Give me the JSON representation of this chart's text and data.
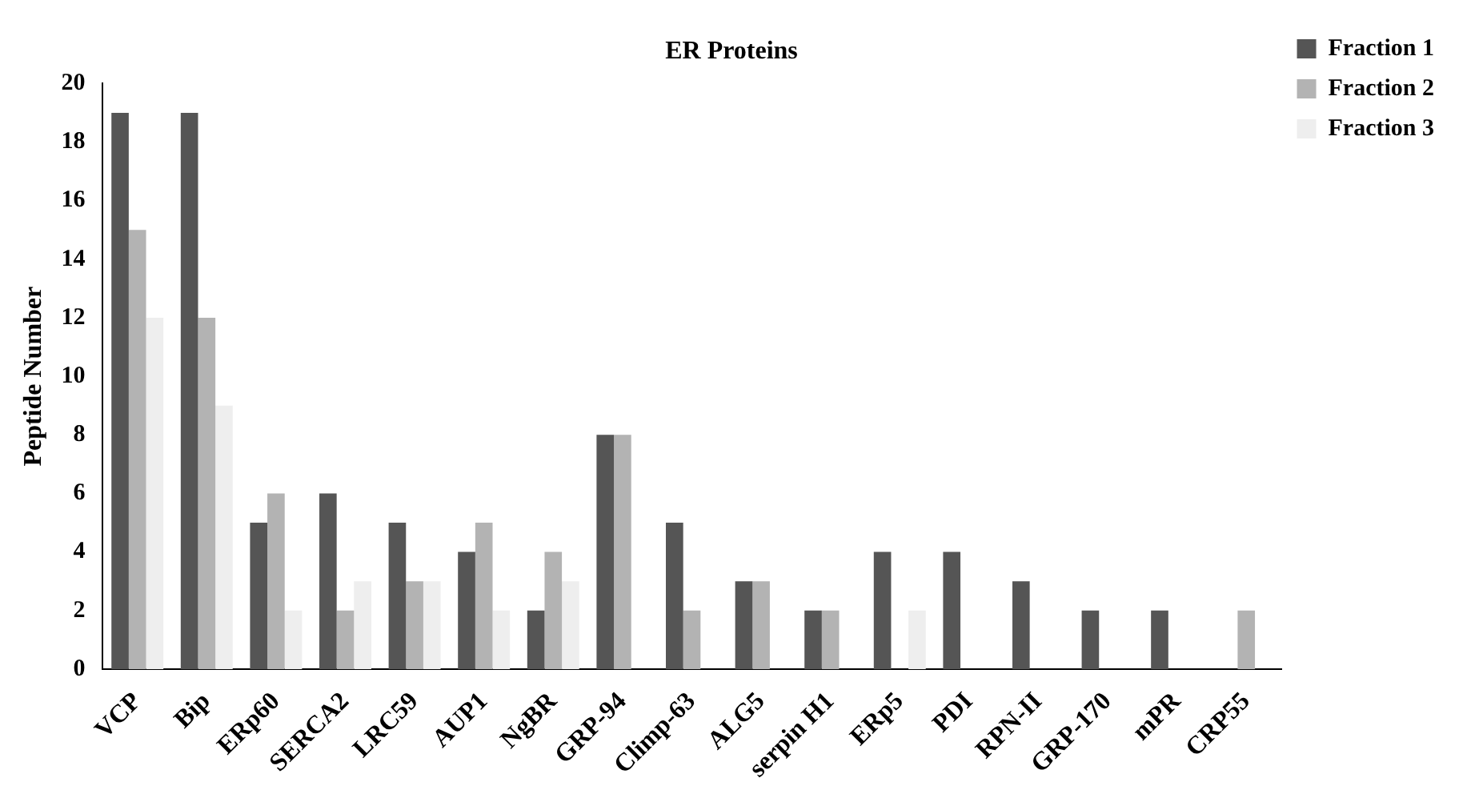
{
  "chart_data": {
    "type": "bar",
    "title": "ER Proteins",
    "ylabel": "Peptide Number",
    "categories": [
      "VCP",
      "Bip",
      "ERp60",
      "SERCA2",
      "LRC59",
      "AUP1",
      "NgBR",
      "GRP-94",
      "Climp-63",
      "ALG5",
      "serpin H1",
      "ERp5",
      "PDI",
      "RPN-II",
      "GRP-170",
      "mPR",
      "CRP55"
    ],
    "series": [
      {
        "name": "Fraction 1",
        "color": "#555555",
        "values": [
          19,
          19,
          5,
          6,
          5,
          4,
          2,
          8,
          5,
          3,
          2,
          4,
          4,
          3,
          2,
          2,
          0
        ]
      },
      {
        "name": "Fraction 2",
        "color": "#b3b3b3",
        "values": [
          15,
          12,
          6,
          2,
          3,
          5,
          4,
          8,
          2,
          3,
          2,
          0,
          0,
          0,
          0,
          0,
          2
        ]
      },
      {
        "name": "Fraction 3",
        "color": "#eeeeee",
        "values": [
          12,
          9,
          2,
          3,
          3,
          2,
          3,
          0,
          0,
          0,
          0,
          2,
          0,
          0,
          0,
          0,
          0
        ]
      }
    ],
    "ylim": [
      0,
      20
    ],
    "yticks": [
      0,
      2,
      4,
      6,
      8,
      10,
      12,
      14,
      16,
      18,
      20
    ],
    "grid": false,
    "legend": "right"
  }
}
